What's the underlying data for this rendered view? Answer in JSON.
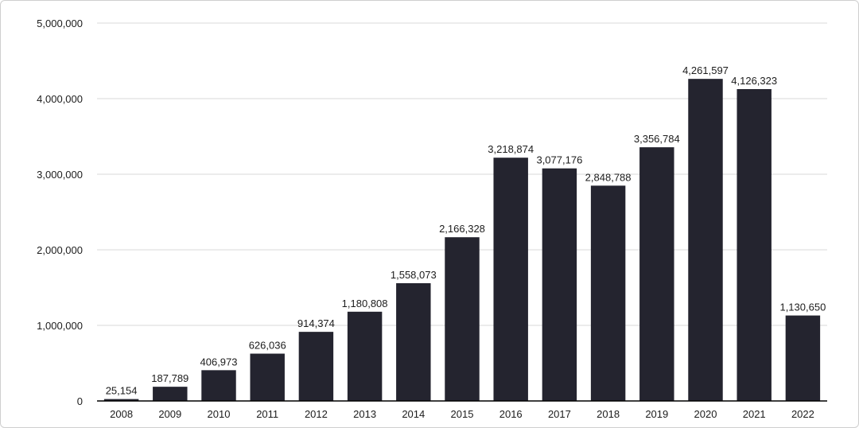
{
  "chart_data": {
    "type": "bar",
    "title": "",
    "xlabel": "",
    "ylabel": "",
    "categories": [
      "2008",
      "2009",
      "2010",
      "2011",
      "2012",
      "2013",
      "2014",
      "2015",
      "2016",
      "2017",
      "2018",
      "2019",
      "2020",
      "2021",
      "2022"
    ],
    "values": [
      25154,
      187789,
      406973,
      626036,
      914374,
      1180808,
      1558073,
      2166328,
      3218874,
      3077176,
      2848788,
      3356784,
      4261597,
      4126323,
      1130650
    ],
    "value_labels": [
      "25,154",
      "187,789",
      "406,973",
      "626,036",
      "914,374",
      "1,180,808",
      "1,558,073",
      "2,166,328",
      "3,218,874",
      "3,077,176",
      "2,848,788",
      "3,356,784",
      "4,261,597",
      "4,126,323",
      "1,130,650"
    ],
    "ylim": [
      0,
      5000000
    ],
    "yticks": [
      0,
      1000000,
      2000000,
      3000000,
      4000000,
      5000000
    ],
    "ytick_labels": [
      "0",
      "1,000,000",
      "2,000,000",
      "3,000,000",
      "4,000,000",
      "5,000,000"
    ],
    "grid": true,
    "legend": "none",
    "bar_color": "#24242f"
  }
}
